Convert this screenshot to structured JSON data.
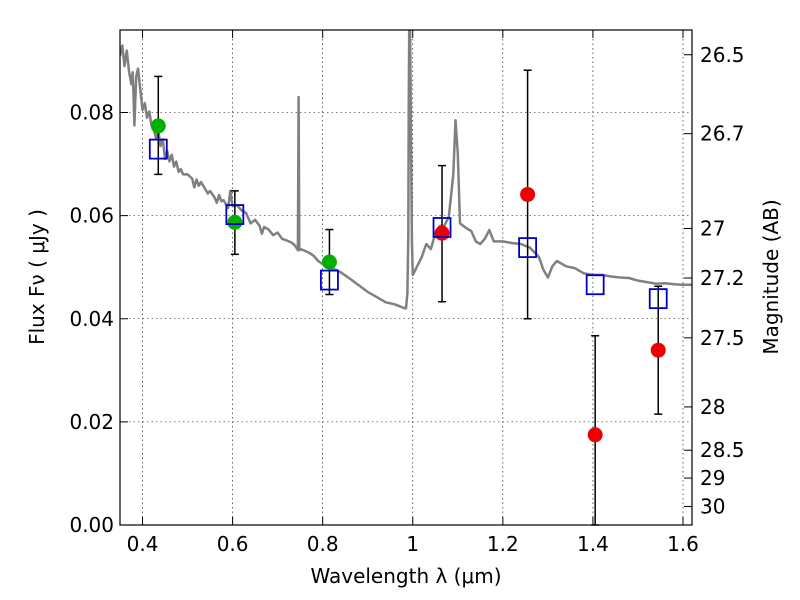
{
  "chart_data": {
    "type": "scatter",
    "title": "",
    "xlabel": "Wavelength  λ (μm)",
    "ylabel_left": "Flux  Fν  ( μJy )",
    "ylabel_right": "Magnitude (AB)",
    "xlim": [
      0.35,
      1.62
    ],
    "ylim": [
      0.0,
      0.096
    ],
    "grid": true,
    "legend": "none",
    "x_ticks": [
      {
        "value": 0.4,
        "label": "0.4"
      },
      {
        "value": 0.6,
        "label": "0.6"
      },
      {
        "value": 0.8,
        "label": "0.8"
      },
      {
        "value": 1.0,
        "label": "1"
      },
      {
        "value": 1.2,
        "label": "1.2"
      },
      {
        "value": 1.4,
        "label": "1.4"
      },
      {
        "value": 1.6,
        "label": "1.6"
      }
    ],
    "y_ticks": [
      {
        "value": 0.0,
        "label": "0.00"
      },
      {
        "value": 0.02,
        "label": "0.02"
      },
      {
        "value": 0.04,
        "label": "0.04"
      },
      {
        "value": 0.06,
        "label": "0.06"
      },
      {
        "value": 0.08,
        "label": "0.08"
      }
    ],
    "right_ticks": [
      {
        "label": "26.5",
        "flux": 0.0912
      },
      {
        "label": "26.7",
        "flux": 0.0759
      },
      {
        "label": "27",
        "flux": 0.0575
      },
      {
        "label": "27.2",
        "flux": 0.0479
      },
      {
        "label": "27.5",
        "flux": 0.0363
      },
      {
        "label": "28",
        "flux": 0.0229
      },
      {
        "label": "28.5",
        "flux": 0.0145
      },
      {
        "label": "29",
        "flux": 0.0091
      },
      {
        "label": "30",
        "flux": 0.0036
      }
    ],
    "series": [
      {
        "kind": "line",
        "color": "#808080",
        "points": [
          [
            0.35,
            0.091
          ],
          [
            0.355,
            0.093
          ],
          [
            0.36,
            0.089
          ],
          [
            0.365,
            0.092
          ],
          [
            0.37,
            0.088
          ],
          [
            0.375,
            0.0855
          ],
          [
            0.378,
            0.0878
          ],
          [
            0.38,
            0.0835
          ],
          [
            0.382,
            0.0775
          ],
          [
            0.386,
            0.087
          ],
          [
            0.39,
            0.0885
          ],
          [
            0.395,
            0.0845
          ],
          [
            0.4,
            0.0805
          ],
          [
            0.405,
            0.0818
          ],
          [
            0.41,
            0.079
          ],
          [
            0.415,
            0.0802
          ],
          [
            0.42,
            0.0775
          ],
          [
            0.425,
            0.0768
          ],
          [
            0.43,
            0.075
          ],
          [
            0.435,
            0.0765
          ],
          [
            0.44,
            0.0735
          ],
          [
            0.445,
            0.0748
          ],
          [
            0.45,
            0.071
          ],
          [
            0.455,
            0.0725
          ],
          [
            0.46,
            0.0705
          ],
          [
            0.465,
            0.0718
          ],
          [
            0.47,
            0.0695
          ],
          [
            0.475,
            0.0705
          ],
          [
            0.48,
            0.0685
          ],
          [
            0.485,
            0.069
          ],
          [
            0.49,
            0.068
          ],
          [
            0.5,
            0.068
          ],
          [
            0.51,
            0.0672
          ],
          [
            0.515,
            0.0655
          ],
          [
            0.52,
            0.067
          ],
          [
            0.525,
            0.0658
          ],
          [
            0.53,
            0.0665
          ],
          [
            0.54,
            0.065
          ],
          [
            0.545,
            0.0643
          ],
          [
            0.55,
            0.0648
          ],
          [
            0.56,
            0.0635
          ],
          [
            0.565,
            0.0625
          ],
          [
            0.57,
            0.064
          ],
          [
            0.575,
            0.0628
          ],
          [
            0.58,
            0.063
          ],
          [
            0.59,
            0.0615
          ],
          [
            0.595,
            0.0648
          ],
          [
            0.6,
            0.0618
          ],
          [
            0.61,
            0.062
          ],
          [
            0.62,
            0.061
          ],
          [
            0.63,
            0.0605
          ],
          [
            0.64,
            0.0585
          ],
          [
            0.65,
            0.0592
          ],
          [
            0.66,
            0.058
          ],
          [
            0.665,
            0.0565
          ],
          [
            0.67,
            0.0578
          ],
          [
            0.68,
            0.0573
          ],
          [
            0.69,
            0.0562
          ],
          [
            0.7,
            0.0567
          ],
          [
            0.71,
            0.0555
          ],
          [
            0.72,
            0.0552
          ],
          [
            0.73,
            0.0548
          ],
          [
            0.735,
            0.0545
          ],
          [
            0.74,
            0.054
          ],
          [
            0.745,
            0.0533
          ],
          [
            0.7465,
            0.083
          ],
          [
            0.748,
            0.0533
          ],
          [
            0.75,
            0.0535
          ],
          [
            0.76,
            0.0532
          ],
          [
            0.77,
            0.0528
          ],
          [
            0.78,
            0.0522
          ],
          [
            0.79,
            0.0512
          ],
          [
            0.8,
            0.0506
          ],
          [
            0.81,
            0.0503
          ],
          [
            0.82,
            0.0497
          ],
          [
            0.83,
            0.0495
          ],
          [
            0.84,
            0.049
          ],
          [
            0.86,
            0.0478
          ],
          [
            0.88,
            0.0465
          ],
          [
            0.9,
            0.0452
          ],
          [
            0.92,
            0.0442
          ],
          [
            0.94,
            0.0432
          ],
          [
            0.96,
            0.0428
          ],
          [
            0.98,
            0.0421
          ],
          [
            0.985,
            0.042
          ],
          [
            0.988,
            0.045
          ],
          [
            0.99,
            0.056
          ],
          [
            0.991,
            0.08
          ],
          [
            0.992,
            0.096
          ],
          [
            0.994,
            0.096
          ],
          [
            0.996,
            0.075
          ],
          [
            0.998,
            0.055
          ],
          [
            1.0,
            0.0485
          ],
          [
            1.02,
            0.052
          ],
          [
            1.03,
            0.0545
          ],
          [
            1.04,
            0.0535
          ],
          [
            1.05,
            0.0565
          ],
          [
            1.06,
            0.058
          ],
          [
            1.07,
            0.058
          ],
          [
            1.08,
            0.0598
          ],
          [
            1.09,
            0.068
          ],
          [
            1.095,
            0.0785
          ],
          [
            1.1,
            0.072
          ],
          [
            1.105,
            0.0585
          ],
          [
            1.12,
            0.0575
          ],
          [
            1.13,
            0.057
          ],
          [
            1.14,
            0.055
          ],
          [
            1.15,
            0.0545
          ],
          [
            1.16,
            0.0555
          ],
          [
            1.17,
            0.0572
          ],
          [
            1.18,
            0.055
          ],
          [
            1.2,
            0.055
          ],
          [
            1.22,
            0.0547
          ],
          [
            1.24,
            0.0545
          ],
          [
            1.26,
            0.0538
          ],
          [
            1.28,
            0.052
          ],
          [
            1.29,
            0.0495
          ],
          [
            1.3,
            0.048
          ],
          [
            1.31,
            0.0502
          ],
          [
            1.32,
            0.0512
          ],
          [
            1.34,
            0.0502
          ],
          [
            1.36,
            0.0498
          ],
          [
            1.38,
            0.0488
          ],
          [
            1.4,
            0.0485
          ],
          [
            1.42,
            0.0485
          ],
          [
            1.44,
            0.0482
          ],
          [
            1.46,
            0.048
          ],
          [
            1.48,
            0.0479
          ],
          [
            1.5,
            0.0474
          ],
          [
            1.52,
            0.0471
          ],
          [
            1.54,
            0.0468
          ],
          [
            1.56,
            0.0469
          ],
          [
            1.58,
            0.0467
          ],
          [
            1.6,
            0.0466
          ],
          [
            1.62,
            0.0466
          ]
        ]
      },
      {
        "kind": "errorbar",
        "color": "#000000",
        "points": [
          {
            "x": 0.435,
            "y": 0.0774,
            "lo": 0.068,
            "hi": 0.087
          },
          {
            "x": 0.605,
            "y": 0.0587,
            "lo": 0.0525,
            "hi": 0.0648
          },
          {
            "x": 0.815,
            "y": 0.051,
            "lo": 0.0447,
            "hi": 0.0573
          },
          {
            "x": 1.065,
            "y": 0.0566,
            "lo": 0.0433,
            "hi": 0.0697
          },
          {
            "x": 1.255,
            "y": 0.0641,
            "lo": 0.04,
            "hi": 0.0882
          },
          {
            "x": 1.405,
            "y": 0.0175,
            "lo": 0.0,
            "hi": 0.0367
          },
          {
            "x": 1.545,
            "y": 0.0339,
            "lo": 0.0215,
            "hi": 0.0463
          }
        ]
      },
      {
        "kind": "points",
        "marker": "circle",
        "color": "#00b000",
        "points": [
          [
            0.435,
            0.0774
          ],
          [
            0.605,
            0.0587
          ],
          [
            0.815,
            0.051
          ]
        ]
      },
      {
        "kind": "points",
        "marker": "circle",
        "color": "#ee0000",
        "points": [
          [
            1.065,
            0.0566
          ],
          [
            1.255,
            0.0641
          ],
          [
            1.405,
            0.0175
          ],
          [
            1.545,
            0.0339
          ]
        ]
      },
      {
        "kind": "points",
        "marker": "open-square",
        "color": "#0000cc",
        "points": [
          [
            0.435,
            0.0729
          ],
          [
            0.605,
            0.0602
          ],
          [
            0.815,
            0.0475
          ],
          [
            1.065,
            0.0577
          ],
          [
            1.255,
            0.0538
          ],
          [
            1.405,
            0.0466
          ],
          [
            1.545,
            0.0439
          ]
        ]
      }
    ]
  }
}
